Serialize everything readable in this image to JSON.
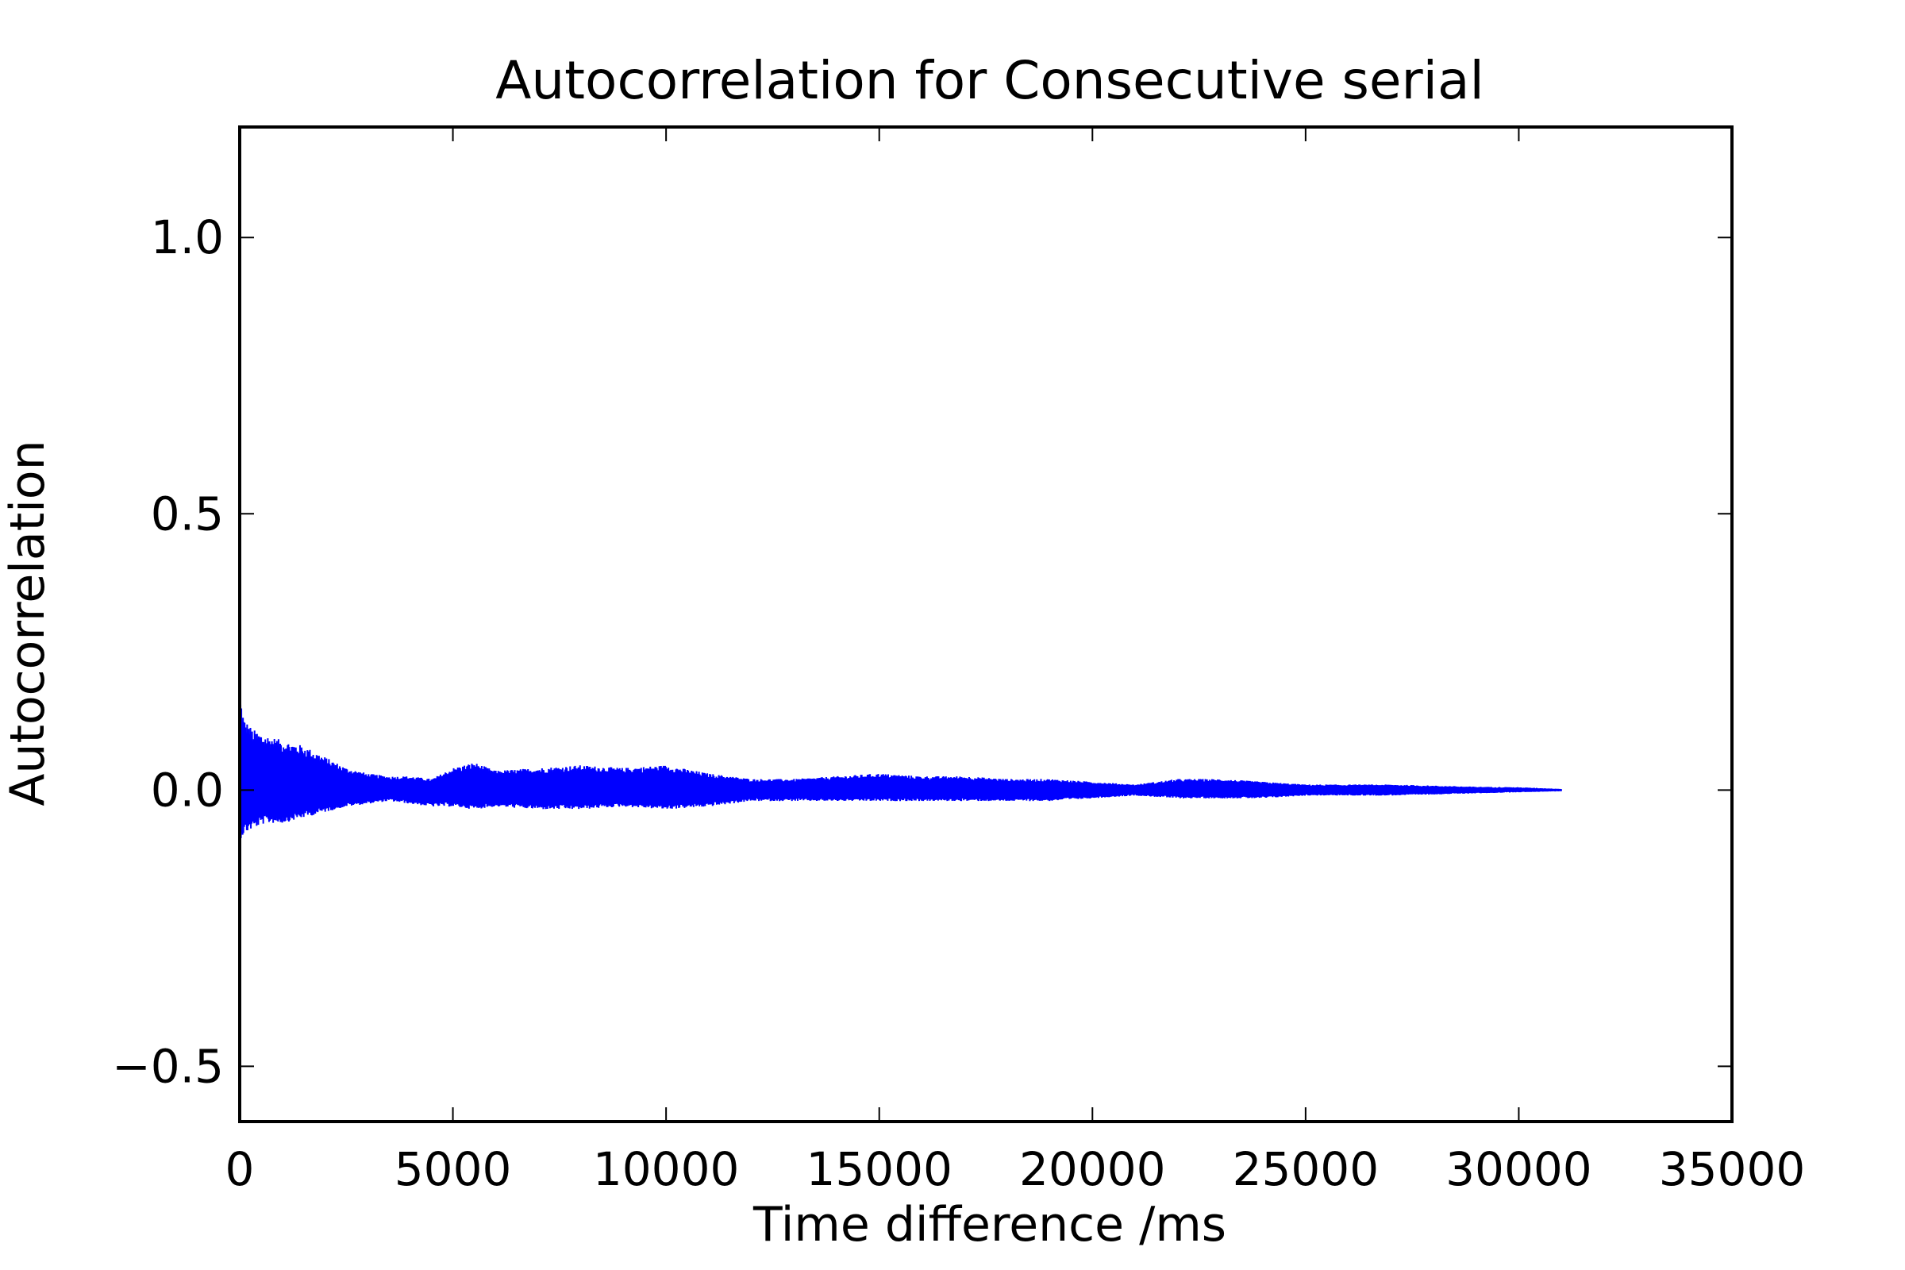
{
  "chart_data": {
    "type": "area",
    "title": "Autocorrelation for Consecutive serial",
    "xlabel": "Time difference /ms",
    "ylabel": "Autocorrelation",
    "xlim": [
      0,
      35000
    ],
    "ylim": [
      -0.6,
      1.2
    ],
    "x_ticks": [
      0,
      5000,
      10000,
      15000,
      20000,
      25000,
      30000,
      35000
    ],
    "x_tick_labels": [
      "0",
      "5000",
      "10000",
      "15000",
      "20000",
      "25000",
      "30000",
      "35000"
    ],
    "y_ticks": [
      -0.5,
      0.0,
      0.5,
      1.0
    ],
    "y_tick_labels": [
      "−0.5",
      "0.0",
      "0.5",
      "1.0"
    ],
    "grid": false,
    "legend": "none",
    "series": [
      {
        "color": "#0000ff",
        "description_of_shape": "oscillating autocorrelation band around 0",
        "x": [
          0,
          100,
          300,
          600,
          1000,
          1500,
          2000,
          2500,
          3000,
          3500,
          4000,
          4500,
          5000,
          5500,
          6000,
          7000,
          8000,
          9000,
          10000,
          11000,
          12000,
          13000,
          14000,
          15000,
          16000,
          17000,
          18000,
          19000,
          20000,
          21000,
          22000,
          23000,
          24000,
          25000,
          26000,
          27000,
          28000,
          29000,
          30000,
          31000
        ],
        "upper": [
          0.18,
          0.13,
          0.11,
          0.1,
          0.09,
          0.08,
          0.06,
          0.04,
          0.03,
          0.025,
          0.025,
          0.02,
          0.04,
          0.05,
          0.035,
          0.04,
          0.045,
          0.04,
          0.045,
          0.03,
          0.02,
          0.02,
          0.025,
          0.03,
          0.025,
          0.025,
          0.02,
          0.02,
          0.015,
          0.01,
          0.02,
          0.02,
          0.015,
          0.01,
          0.01,
          0.01,
          0.008,
          0.006,
          0.005,
          0.002
        ],
        "lower": [
          -0.09,
          -0.08,
          -0.07,
          -0.06,
          -0.06,
          -0.05,
          -0.04,
          -0.03,
          -0.025,
          -0.02,
          -0.025,
          -0.03,
          -0.03,
          -0.035,
          -0.03,
          -0.035,
          -0.035,
          -0.03,
          -0.035,
          -0.03,
          -0.02,
          -0.02,
          -0.02,
          -0.02,
          -0.02,
          -0.02,
          -0.02,
          -0.02,
          -0.015,
          -0.01,
          -0.015,
          -0.015,
          -0.015,
          -0.01,
          -0.01,
          -0.01,
          -0.008,
          -0.006,
          -0.004,
          -0.002
        ]
      }
    ]
  }
}
